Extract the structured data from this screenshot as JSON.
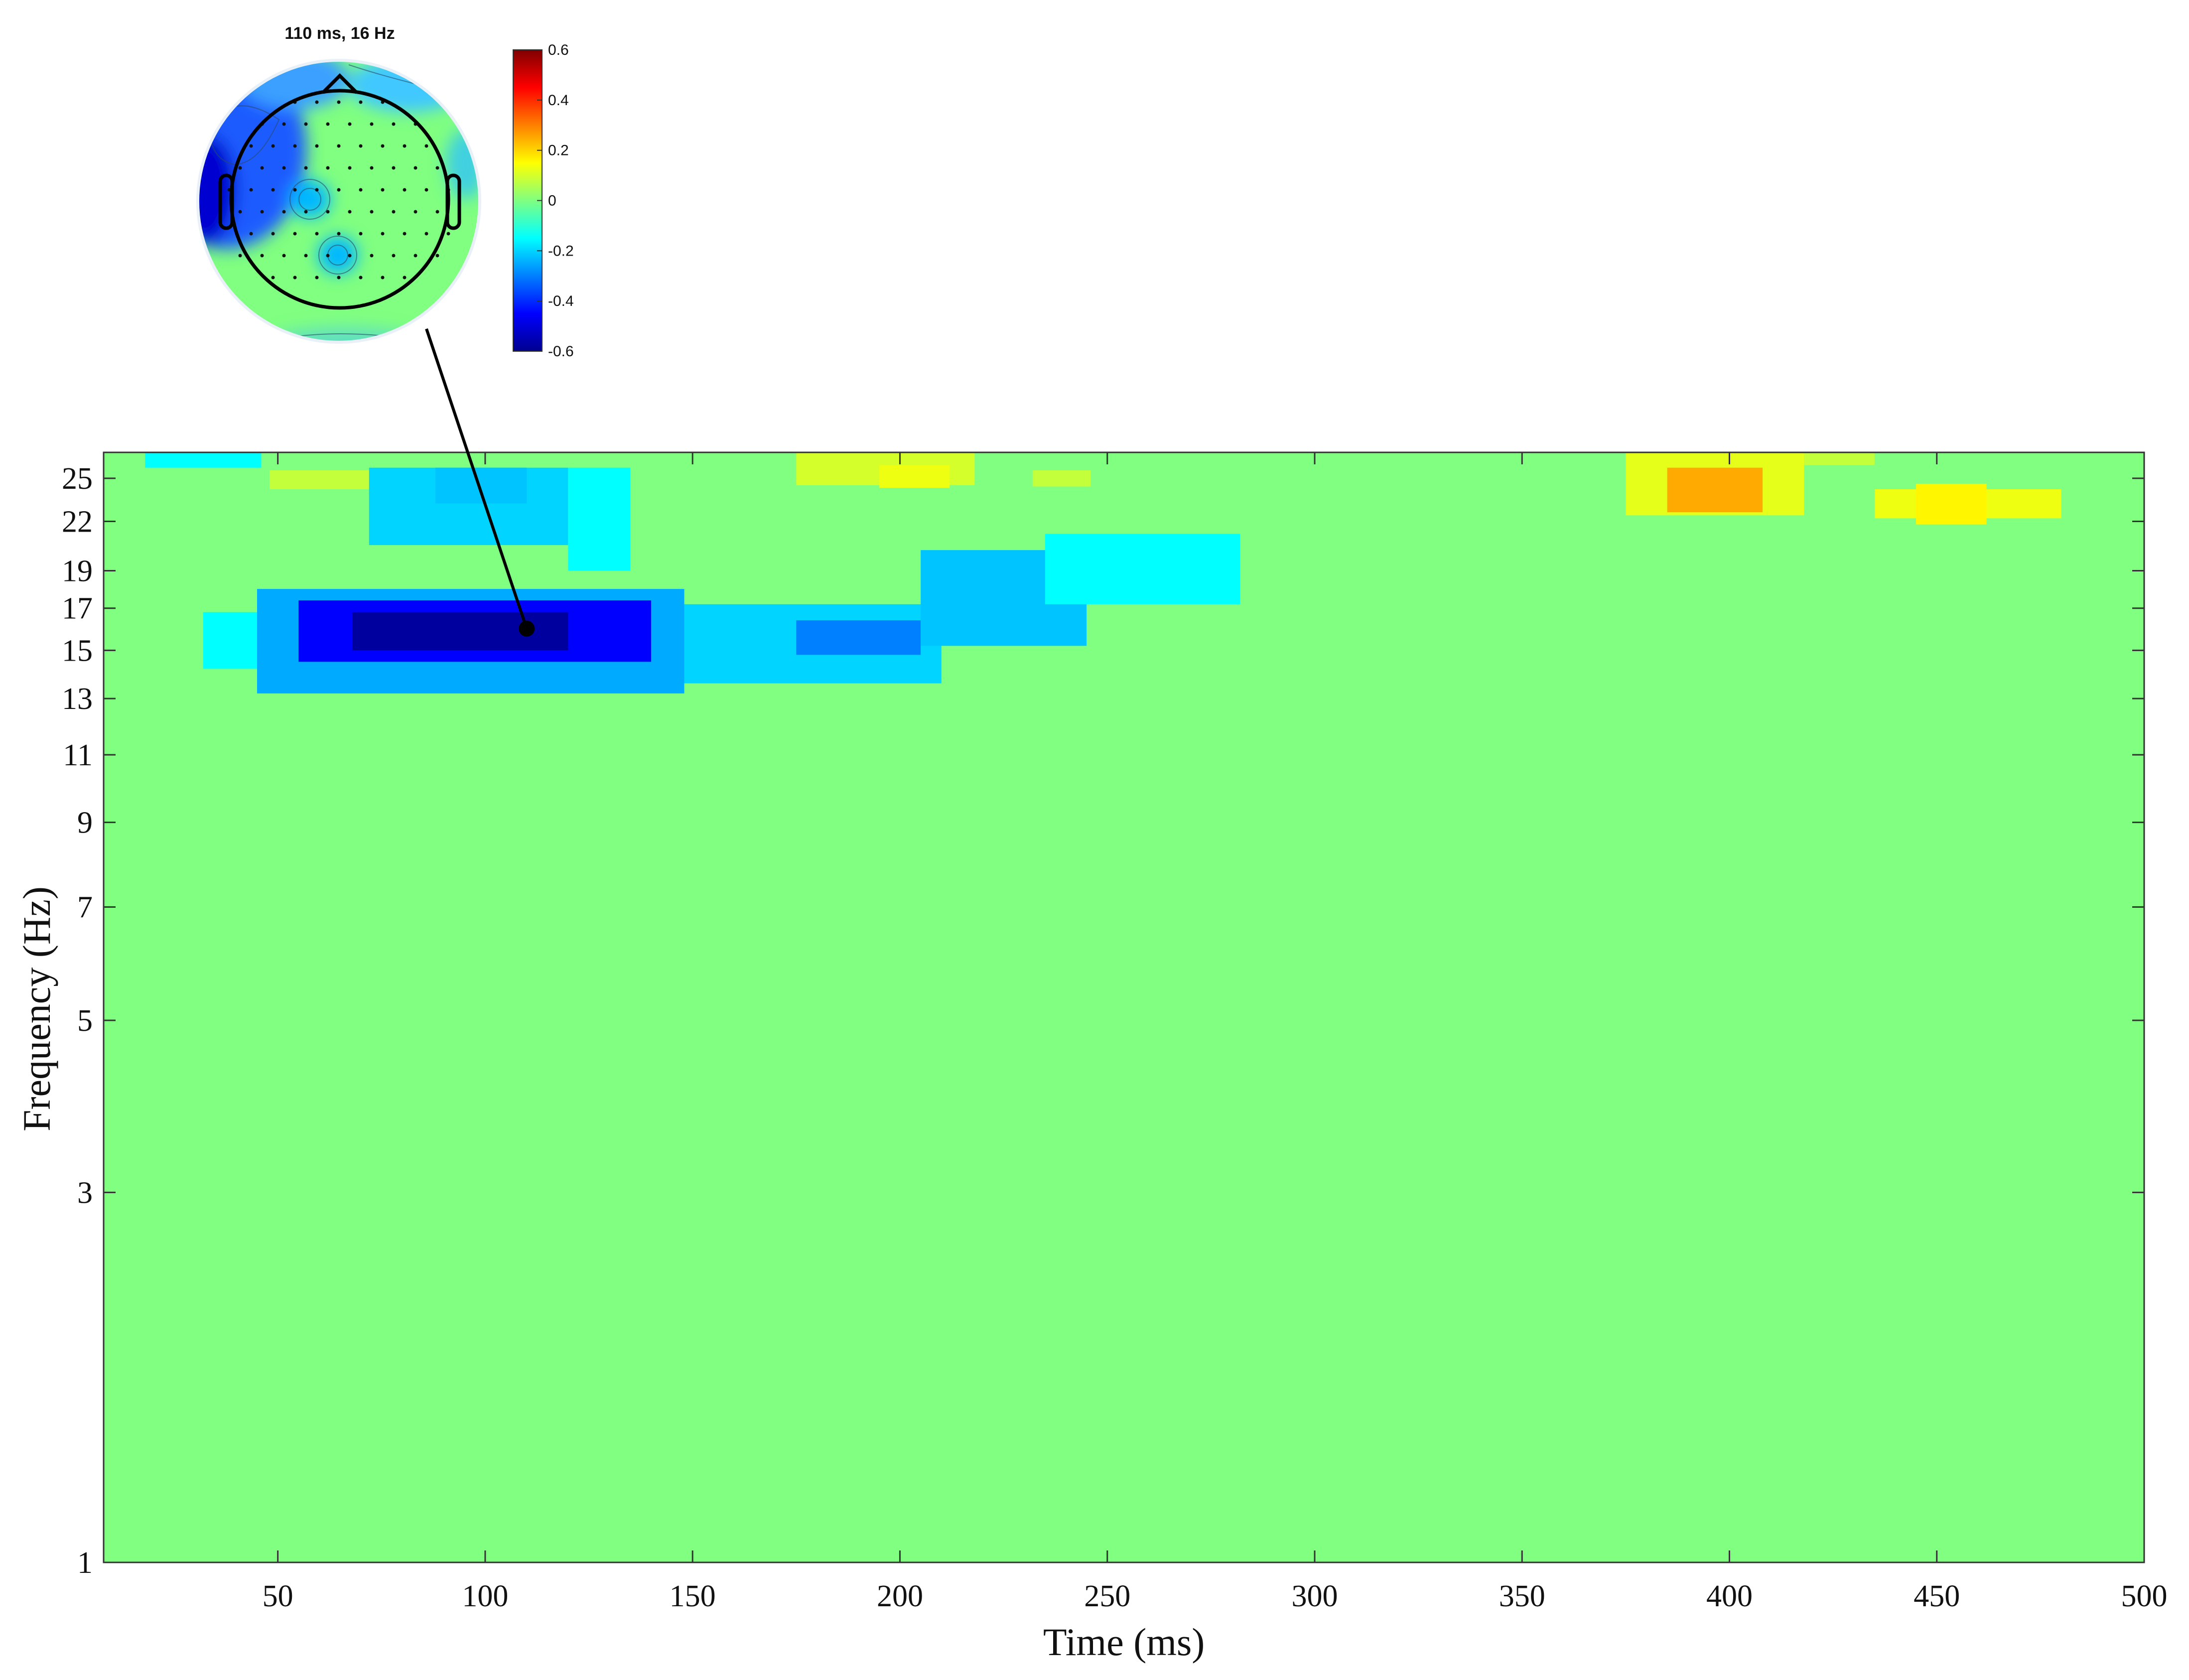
{
  "chart_data": [
    {
      "type": "heatmap",
      "title": "",
      "xlabel": "Time (ms)",
      "ylabel": "Frequency (Hz)",
      "xlim": [
        8,
        500
      ],
      "ylim": [
        1,
        27
      ],
      "y_scale": "log",
      "x_ticks": [
        50,
        100,
        150,
        200,
        250,
        300,
        350,
        400,
        450,
        500
      ],
      "y_ticks": [
        1,
        3,
        5,
        7,
        9,
        11,
        13,
        15,
        17,
        19,
        22,
        25
      ],
      "background_value": 0,
      "background_color": "#80ff80",
      "clim": [
        -0.6,
        0.6
      ],
      "grid": false,
      "clusters": [
        {
          "t_start": 18,
          "t_end": 46,
          "f_low": 25.8,
          "f_high": 27.0,
          "value": -0.15
        },
        {
          "t_start": 48,
          "t_end": 75,
          "f_low": 24.2,
          "f_high": 25.6,
          "value": 0.08
        },
        {
          "t_start": 72,
          "t_end": 120,
          "f_low": 20.5,
          "f_high": 25.8,
          "value": -0.2
        },
        {
          "t_start": 88,
          "t_end": 110,
          "f_low": 23.2,
          "f_high": 25.8,
          "value": -0.22
        },
        {
          "t_start": 120,
          "t_end": 135,
          "f_low": 19.0,
          "f_high": 25.8,
          "value": -0.15
        },
        {
          "t_start": 32,
          "t_end": 60,
          "f_low": 14.2,
          "f_high": 16.8,
          "value": -0.15
        },
        {
          "t_start": 45,
          "t_end": 148,
          "f_low": 13.2,
          "f_high": 18.0,
          "value": -0.25
        },
        {
          "t_start": 55,
          "t_end": 140,
          "f_low": 14.5,
          "f_high": 17.4,
          "value": -0.45
        },
        {
          "t_start": 68,
          "t_end": 120,
          "f_low": 15.0,
          "f_high": 16.8,
          "value": -0.58
        },
        {
          "t_start": 148,
          "t_end": 210,
          "f_low": 13.6,
          "f_high": 17.2,
          "value": -0.2
        },
        {
          "t_start": 175,
          "t_end": 205,
          "f_low": 14.8,
          "f_high": 16.4,
          "value": -0.3
        },
        {
          "t_start": 205,
          "t_end": 245,
          "f_low": 15.2,
          "f_high": 20.2,
          "value": -0.22
        },
        {
          "t_start": 235,
          "t_end": 282,
          "f_low": 17.2,
          "f_high": 21.2,
          "value": -0.15
        },
        {
          "t_start": 175,
          "t_end": 218,
          "f_low": 24.5,
          "f_high": 27.0,
          "value": 0.1
        },
        {
          "t_start": 195,
          "t_end": 212,
          "f_low": 24.3,
          "f_high": 26.0,
          "value": 0.13
        },
        {
          "t_start": 232,
          "t_end": 246,
          "f_low": 24.4,
          "f_high": 25.6,
          "value": 0.08
        },
        {
          "t_start": 375,
          "t_end": 418,
          "f_low": 22.4,
          "f_high": 27.0,
          "value": 0.12
        },
        {
          "t_start": 385,
          "t_end": 408,
          "f_low": 22.6,
          "f_high": 25.8,
          "value": 0.25
        },
        {
          "t_start": 418,
          "t_end": 435,
          "f_low": 26.0,
          "f_high": 27.0,
          "value": 0.08
        },
        {
          "t_start": 435,
          "t_end": 480,
          "f_low": 22.2,
          "f_high": 24.2,
          "value": 0.13
        },
        {
          "t_start": 445,
          "t_end": 462,
          "f_low": 21.8,
          "f_high": 24.6,
          "value": 0.16
        }
      ],
      "annotation": {
        "time_ms": 110,
        "freq_hz": 16
      }
    },
    {
      "type": "heatmap",
      "subtype": "topographic scalp map",
      "title": "110 ms, 16 Hz",
      "colorbar": {
        "ticks": [
          0.6,
          0.4,
          0.2,
          0,
          -0.2,
          -0.4,
          -0.6
        ],
        "tick_labels": [
          "0.6",
          "0.4",
          "0.2",
          "0",
          "-0.2",
          "-0.4",
          "-0.6"
        ],
        "colormap": "jet",
        "range": [
          -0.6,
          0.6
        ]
      },
      "background_color": "#80ff80",
      "features": [
        {
          "name": "left frontal-temporal negativity",
          "value": -0.5
        },
        {
          "name": "left central focal negativity",
          "value": -0.3
        },
        {
          "name": "centro-parietal focal negativity",
          "value": -0.3
        },
        {
          "name": "right frontal edge negativity",
          "value": -0.15
        }
      ]
    }
  ]
}
